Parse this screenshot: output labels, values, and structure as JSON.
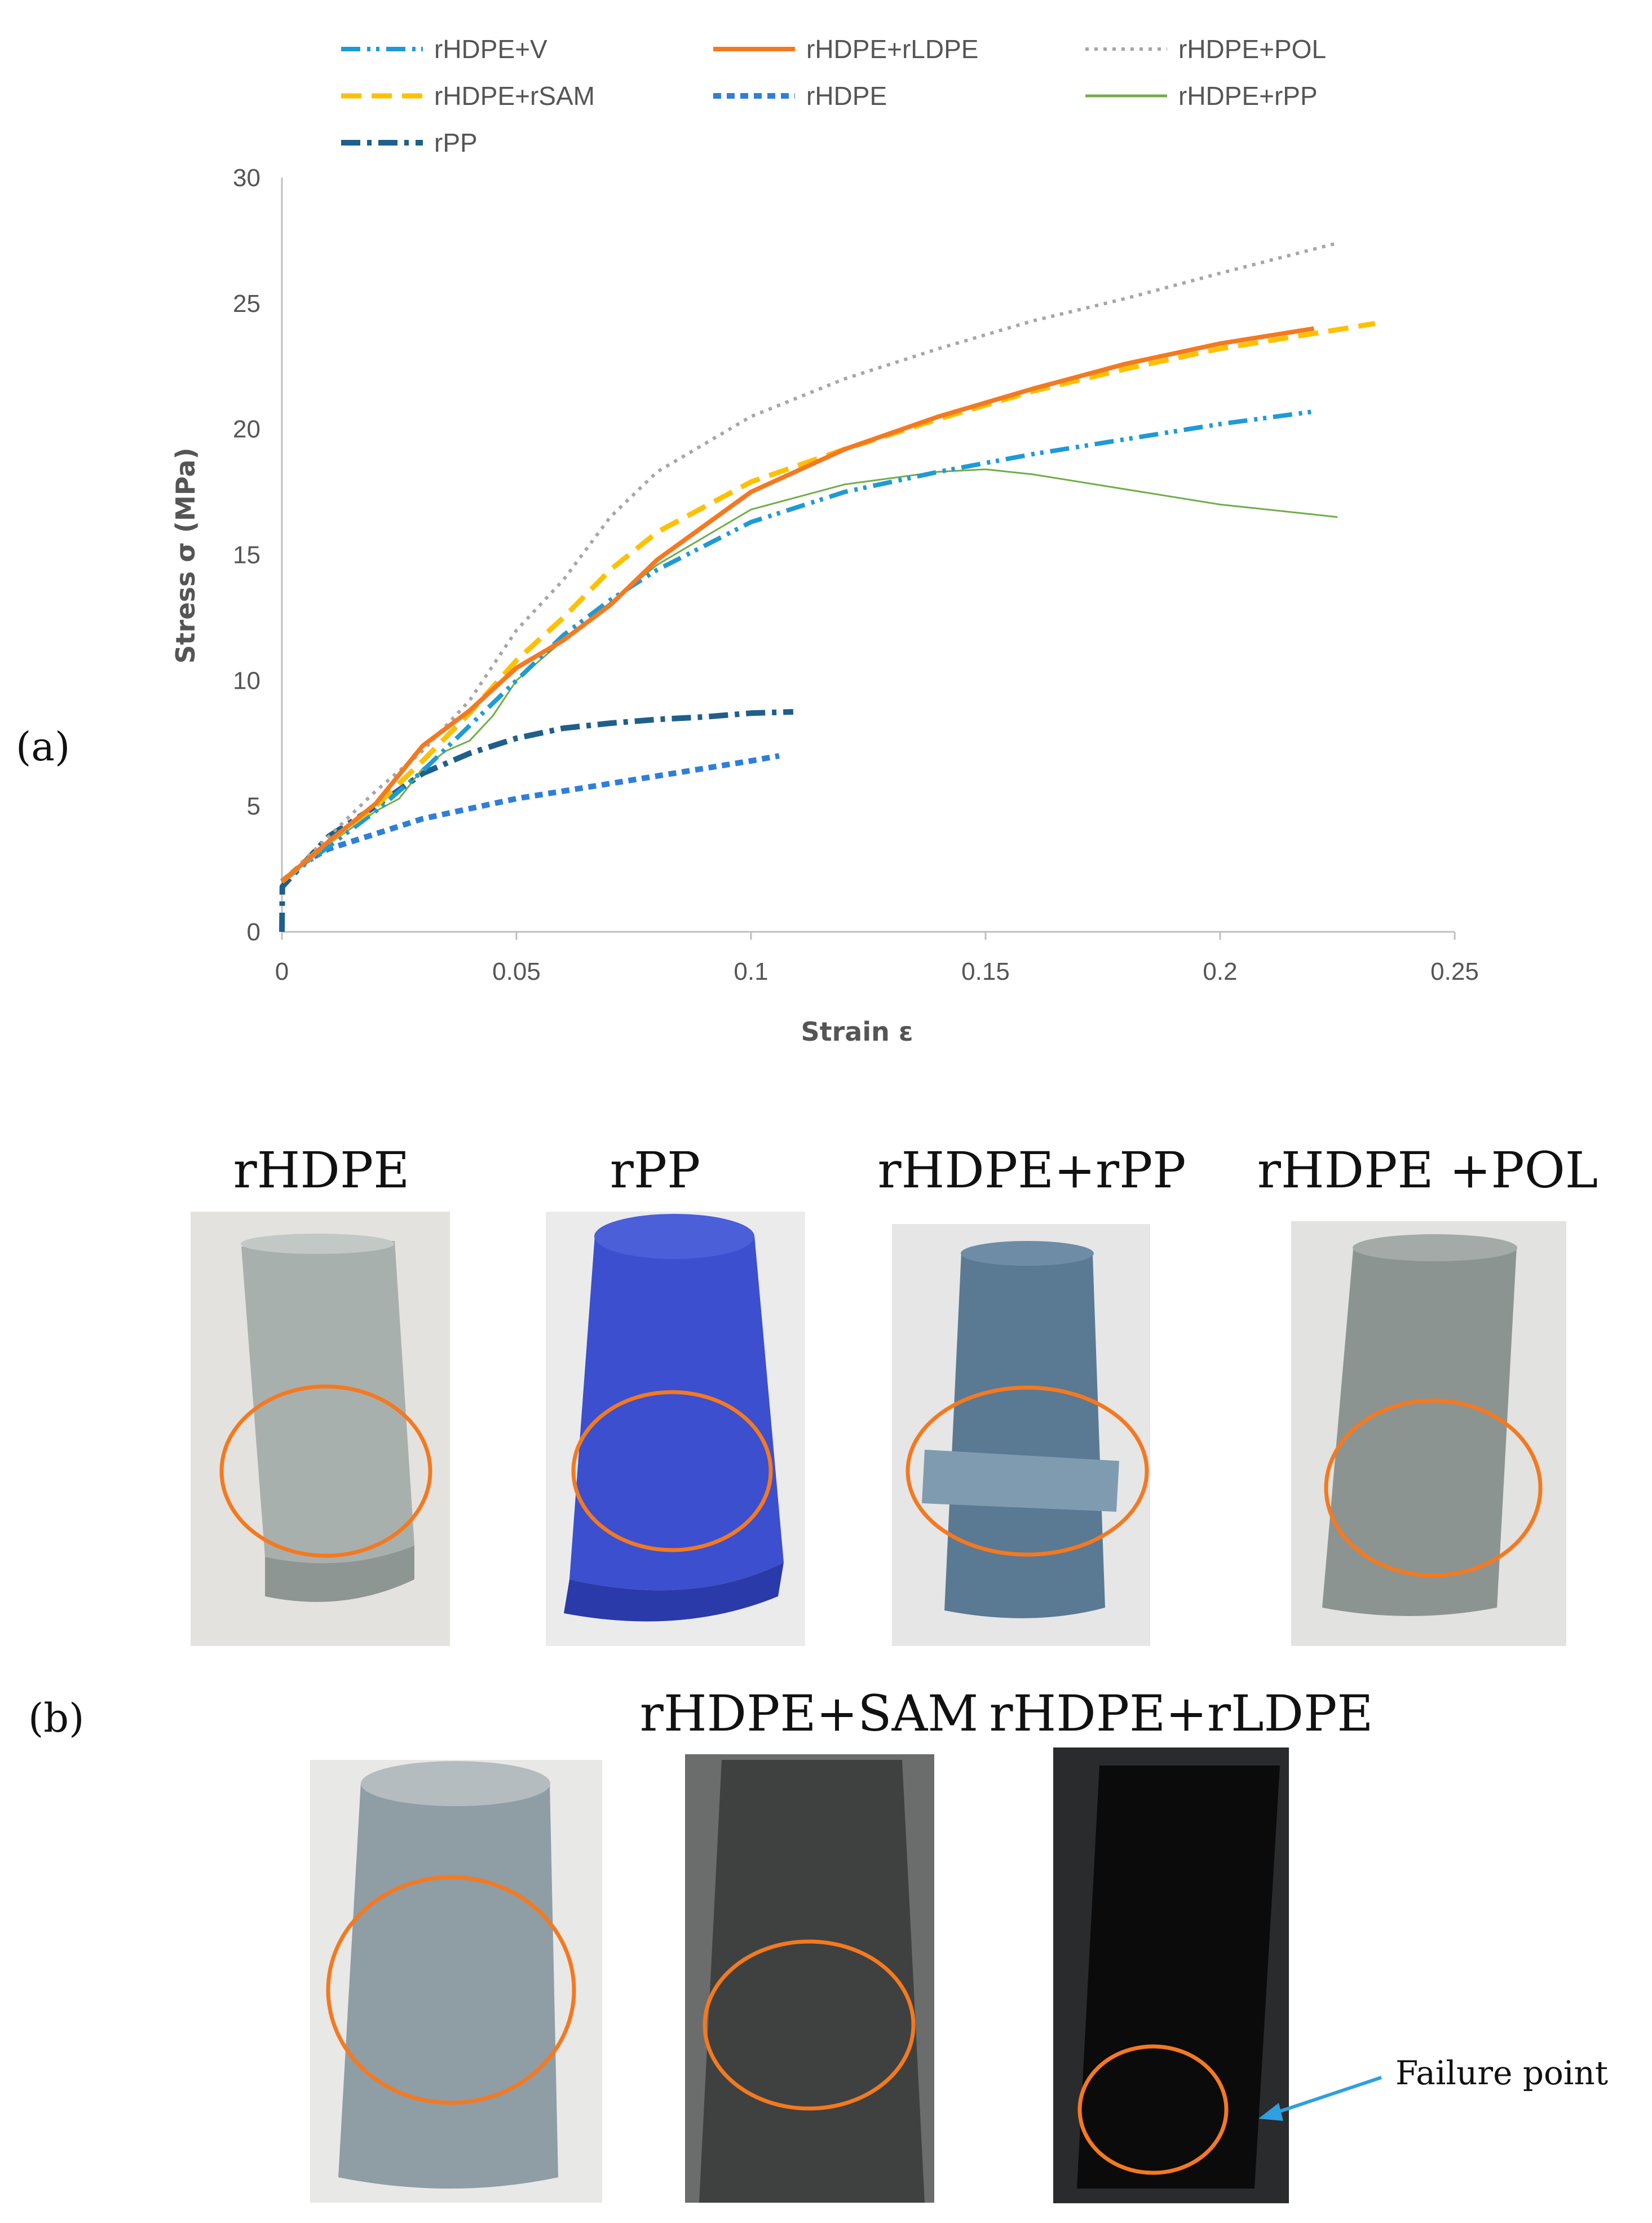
{
  "chart_data": {
    "type": "line",
    "xlabel": "Strain ε",
    "ylabel": "Stress  σ (MPa)",
    "xlim": [
      0,
      0.25
    ],
    "ylim": [
      0,
      30
    ],
    "xticks": [
      "0",
      "0.05",
      "0.1",
      "0.15",
      "0.2",
      "0.25"
    ],
    "yticks": [
      "0",
      "5",
      "10",
      "15",
      "20",
      "25",
      "30"
    ],
    "grid": false,
    "legend_position": "top",
    "series": [
      {
        "name": "rHDPE+V",
        "color": "#1f9ad6",
        "style": "dash-dot-dot",
        "x": [
          0,
          0.01,
          0.02,
          0.03,
          0.04,
          0.05,
          0.06,
          0.07,
          0.08,
          0.1,
          0.12,
          0.14,
          0.16,
          0.18,
          0.2,
          0.22
        ],
        "y": [
          2.0,
          3.4,
          4.8,
          6.4,
          8.2,
          10.0,
          11.8,
          13.2,
          14.4,
          16.3,
          17.5,
          18.3,
          19.0,
          19.6,
          20.2,
          20.7
        ]
      },
      {
        "name": "rHDPE+rLDPE",
        "color": "#f47920",
        "style": "solid",
        "x": [
          0,
          0.01,
          0.02,
          0.03,
          0.04,
          0.05,
          0.06,
          0.07,
          0.08,
          0.1,
          0.12,
          0.14,
          0.16,
          0.18,
          0.2,
          0.22
        ],
        "y": [
          2.0,
          3.6,
          5.1,
          7.4,
          8.8,
          10.5,
          11.6,
          13.0,
          14.8,
          17.5,
          19.2,
          20.5,
          21.6,
          22.6,
          23.4,
          24.0
        ]
      },
      {
        "name": "rHDPE+POL",
        "color": "#a6a6a6",
        "style": "dotted",
        "x": [
          0,
          0.01,
          0.02,
          0.03,
          0.04,
          0.05,
          0.06,
          0.07,
          0.08,
          0.1,
          0.12,
          0.14,
          0.16,
          0.18,
          0.2,
          0.225
        ],
        "y": [
          2.0,
          3.8,
          5.6,
          7.2,
          9.2,
          12.0,
          14.0,
          16.5,
          18.3,
          20.5,
          22.0,
          23.2,
          24.3,
          25.2,
          26.2,
          27.4
        ]
      },
      {
        "name": "rHDPE+rSAM",
        "color": "#ffc000",
        "style": "dashed",
        "x": [
          0,
          0.01,
          0.02,
          0.03,
          0.04,
          0.05,
          0.06,
          0.07,
          0.08,
          0.1,
          0.12,
          0.14,
          0.16,
          0.18,
          0.2,
          0.22,
          0.233
        ],
        "y": [
          2.0,
          3.6,
          5.0,
          6.8,
          8.7,
          10.8,
          12.5,
          14.4,
          15.9,
          17.9,
          19.2,
          20.4,
          21.5,
          22.4,
          23.2,
          23.8,
          24.2
        ]
      },
      {
        "name": "rHDPE",
        "color": "#2e7fd9",
        "style": "short-dash",
        "x": [
          0,
          0.005,
          0.01,
          0.02,
          0.03,
          0.04,
          0.05,
          0.06,
          0.07,
          0.08,
          0.09,
          0.1,
          0.106
        ],
        "y": [
          2.0,
          2.8,
          3.3,
          3.9,
          4.5,
          4.9,
          5.3,
          5.6,
          5.9,
          6.2,
          6.5,
          6.8,
          7.0
        ]
      },
      {
        "name": "rHDPE+rPP",
        "color": "#70ad47",
        "style": "thin-solid",
        "x": [
          0,
          0.01,
          0.02,
          0.025,
          0.03,
          0.035,
          0.04,
          0.045,
          0.05,
          0.06,
          0.07,
          0.08,
          0.1,
          0.12,
          0.14,
          0.15,
          0.16,
          0.18,
          0.2,
          0.225
        ],
        "y": [
          2.0,
          3.5,
          4.8,
          5.3,
          6.5,
          7.2,
          7.6,
          8.6,
          10.0,
          11.6,
          13.1,
          14.6,
          16.8,
          17.8,
          18.3,
          18.4,
          18.2,
          17.6,
          17.0,
          16.5
        ]
      },
      {
        "name": "rPP",
        "color": "#1f5f8b",
        "style": "dash-dot",
        "x": [
          0,
          0.0001,
          0.005,
          0.01,
          0.02,
          0.03,
          0.04,
          0.05,
          0.06,
          0.07,
          0.08,
          0.09,
          0.1,
          0.109
        ],
        "y": [
          0,
          1.8,
          2.8,
          3.8,
          5.0,
          6.3,
          7.1,
          7.7,
          8.1,
          8.3,
          8.45,
          8.55,
          8.7,
          8.75
        ]
      }
    ]
  },
  "panel_labels": {
    "a": "(a)",
    "b": "(b)"
  },
  "photos": [
    {
      "label": "rHDPE",
      "body_color": "#a8b0ae"
    },
    {
      "label": "rPP",
      "body_color": "#3b4fcf"
    },
    {
      "label": "rHDPE+rPP",
      "body_color": "#5a7993"
    },
    {
      "label": "rHDPE +POL",
      "body_color": "#8c9492"
    },
    {
      "label": "",
      "body_color": "#8f9da5"
    },
    {
      "label": "rHDPE+SAM",
      "body_color": "#3e413f"
    },
    {
      "label": "rHDPE+rLDPE",
      "body_color": "#0b0b0c"
    }
  ],
  "highlight_color": "#f47920",
  "failure_annotation": {
    "text": "Failure point",
    "arrow_color": "#2e9fe0"
  }
}
